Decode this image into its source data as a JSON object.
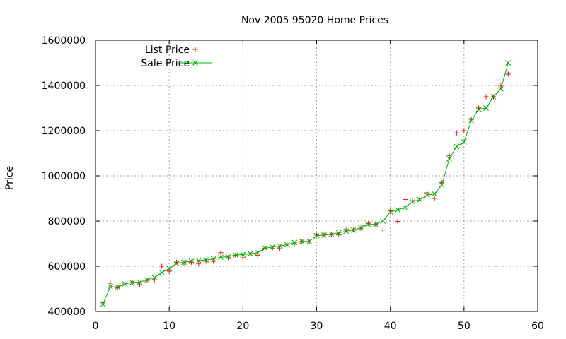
{
  "chart_data": {
    "type": "scatter",
    "title": "Nov 2005 95020 Home Prices",
    "xlabel": "",
    "ylabel": "Price",
    "xlim": [
      0,
      60
    ],
    "ylim": [
      400000,
      1600000
    ],
    "x_ticks": [
      "0",
      "10",
      "20",
      "30",
      "40",
      "50",
      "60"
    ],
    "y_ticks": [
      "400000",
      "600000",
      "800000",
      "1000000",
      "1200000",
      "1400000",
      "1600000"
    ],
    "grid": true,
    "legend_position": "top-left",
    "series": [
      {
        "name": "List Price",
        "style": "points",
        "marker": "plus",
        "color": "#ff0000",
        "x": [
          1,
          2,
          3,
          4,
          5,
          6,
          7,
          8,
          9,
          10,
          11,
          12,
          13,
          14,
          15,
          16,
          17,
          18,
          19,
          20,
          21,
          22,
          23,
          24,
          25,
          26,
          27,
          28,
          29,
          30,
          31,
          32,
          33,
          34,
          35,
          36,
          37,
          38,
          39,
          40,
          41,
          42,
          43,
          44,
          45,
          46,
          47,
          48,
          49,
          50,
          51,
          52,
          53,
          54,
          55,
          56
        ],
        "values": [
          440000,
          525000,
          505000,
          525000,
          528000,
          518000,
          538000,
          540000,
          600000,
          578000,
          618000,
          615000,
          618000,
          612000,
          622000,
          622000,
          660000,
          638000,
          648000,
          638000,
          655000,
          648000,
          680000,
          678000,
          678000,
          698000,
          698000,
          710000,
          708000,
          738000,
          738000,
          740000,
          740000,
          760000,
          760000,
          768000,
          790000,
          785000,
          760000,
          845000,
          798000,
          895000,
          890000,
          900000,
          925000,
          900000,
          970000,
          1090000,
          1190000,
          1200000,
          1250000,
          1300000,
          1350000,
          1350000,
          1400000,
          1450000
        ]
      },
      {
        "name": "Sale Price",
        "style": "linespoints",
        "marker": "cross",
        "color": "#00b000",
        "x": [
          1,
          2,
          3,
          4,
          5,
          6,
          7,
          8,
          9,
          10,
          11,
          12,
          13,
          14,
          15,
          16,
          17,
          18,
          19,
          20,
          21,
          22,
          23,
          24,
          25,
          26,
          27,
          28,
          29,
          30,
          31,
          32,
          33,
          34,
          35,
          36,
          37,
          38,
          39,
          40,
          41,
          42,
          43,
          44,
          45,
          46,
          47,
          48,
          49,
          50,
          51,
          52,
          53,
          54,
          55,
          56
        ],
        "values": [
          432000,
          510000,
          508000,
          522000,
          528000,
          530000,
          540000,
          550000,
          572000,
          590000,
          612000,
          618000,
          622000,
          625000,
          628000,
          632000,
          640000,
          642000,
          650000,
          652000,
          655000,
          660000,
          680000,
          685000,
          690000,
          695000,
          705000,
          710000,
          710000,
          735000,
          738000,
          742000,
          748000,
          755000,
          760000,
          770000,
          785000,
          785000,
          800000,
          840000,
          850000,
          860000,
          885000,
          895000,
          915000,
          920000,
          960000,
          1075000,
          1130000,
          1150000,
          1245000,
          1295000,
          1300000,
          1350000,
          1385000,
          1500000
        ]
      }
    ]
  }
}
